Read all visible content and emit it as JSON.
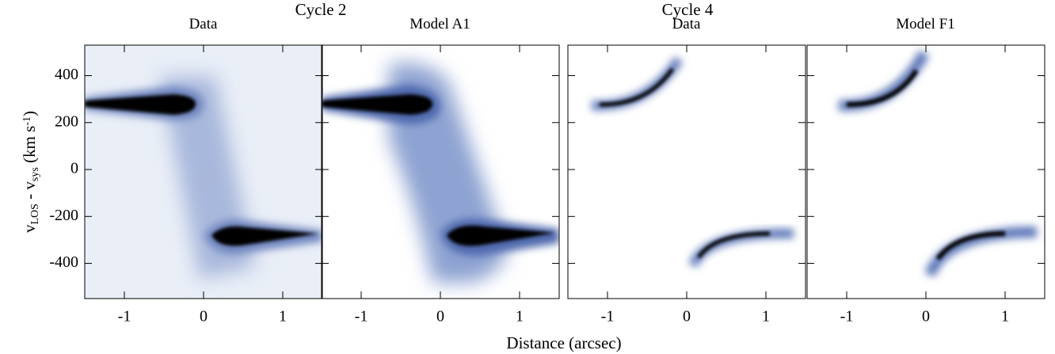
{
  "suptitles": [
    "Cycle 2",
    "Cycle 4"
  ],
  "xlabel": "Distance (arcsec)",
  "ylabel": [
    "v",
    "LOS",
    " - v",
    "sys",
    " (km s",
    "-1",
    ")"
  ],
  "chart_data": [
    {
      "type": "heatmap",
      "title": "Data",
      "xlim": [
        -1.5,
        1.5
      ],
      "xticks": [
        -1,
        0,
        1
      ],
      "ylim": [
        -550,
        530
      ],
      "yticks": [
        -400,
        -200,
        0,
        200,
        400
      ]
    },
    {
      "type": "heatmap",
      "title": "Model A1",
      "xlim": [
        -1.5,
        1.5
      ],
      "xticks": [
        -1,
        0,
        1
      ],
      "ylim": [
        -550,
        530
      ],
      "yticks": [
        -400,
        -200,
        0,
        200,
        400
      ]
    },
    {
      "type": "heatmap",
      "title": "Data",
      "xlim": [
        -1.5,
        1.5
      ],
      "xticks": [
        -1,
        0,
        1
      ],
      "ylim": [
        -550,
        530
      ],
      "yticks": [
        -400,
        -200,
        0,
        200,
        400
      ]
    },
    {
      "type": "heatmap",
      "title": "Model F1",
      "xlim": [
        -1.5,
        1.5
      ],
      "xticks": [
        -1,
        0,
        1
      ],
      "ylim": [
        -550,
        530
      ],
      "yticks": [
        -400,
        -200,
        0,
        200,
        400
      ]
    }
  ]
}
